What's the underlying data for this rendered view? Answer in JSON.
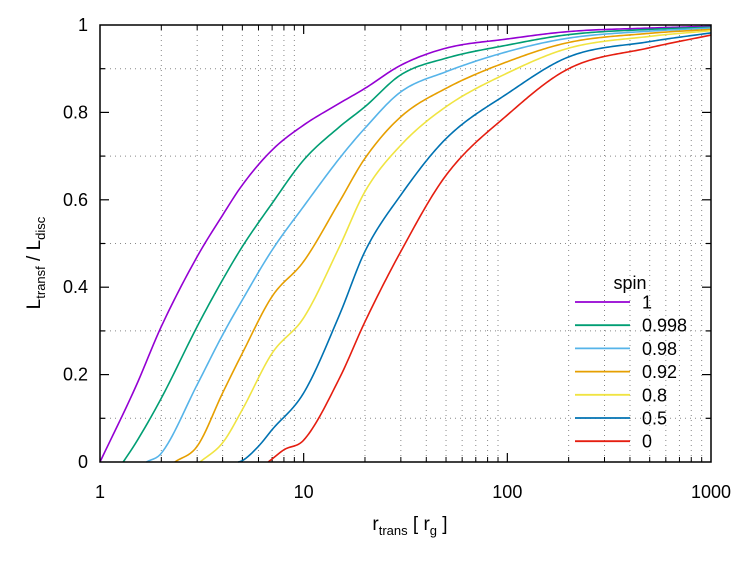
{
  "chart_data": {
    "type": "line",
    "xlabel": {
      "main": "r",
      "sub": "trans",
      "bracket_open": " [ r",
      "bracket_sub": "g",
      "bracket_close": " ]"
    },
    "ylabel": {
      "num": "L",
      "num_sub": "transf",
      "sep": " / L",
      "den_sub": "disc"
    },
    "x_scale": "log",
    "xlim": [
      1,
      1000
    ],
    "ylim": [
      0,
      1
    ],
    "xticks": [
      "1",
      "10",
      "100",
      "1000"
    ],
    "yticks": [
      "0",
      "0.2",
      "0.4",
      "0.6",
      "0.8",
      "1"
    ],
    "grid": "minor dotted",
    "legend_title": "spin",
    "legend_position": "bottom-right",
    "series": [
      {
        "name": "1",
        "color": "#9400d3",
        "x": [
          1,
          1.5,
          2,
          3,
          4,
          5,
          7,
          10,
          15,
          20,
          30,
          50,
          100,
          200,
          500,
          1000
        ],
        "y": [
          0,
          0.173,
          0.31,
          0.47,
          0.565,
          0.634,
          0.714,
          0.771,
          0.821,
          0.855,
          0.908,
          0.947,
          0.968,
          0.985,
          0.993,
          0.997
        ]
      },
      {
        "name": "0.998",
        "color": "#009e73",
        "x": [
          1.3,
          1.5,
          2,
          3,
          4,
          5,
          7,
          10,
          15,
          20,
          30,
          50,
          100,
          200,
          500,
          1000
        ],
        "y": [
          0,
          0.044,
          0.146,
          0.31,
          0.417,
          0.493,
          0.592,
          0.691,
          0.767,
          0.813,
          0.886,
          0.924,
          0.954,
          0.978,
          0.99,
          0.995
        ]
      },
      {
        "name": "0.98",
        "color": "#56b4e9",
        "x": [
          1.69,
          2,
          3,
          4,
          5,
          7,
          10,
          15,
          20,
          30,
          50,
          100,
          200,
          500,
          1000
        ],
        "y": [
          0,
          0.02,
          0.177,
          0.291,
          0.371,
          0.485,
          0.585,
          0.695,
          0.764,
          0.847,
          0.893,
          0.939,
          0.97,
          0.986,
          0.993
        ]
      },
      {
        "name": "0.92",
        "color": "#e69f00",
        "x": [
          2.33,
          3,
          4,
          5,
          7,
          10,
          15,
          20,
          30,
          50,
          100,
          200,
          500,
          1000
        ],
        "y": [
          0,
          0.036,
          0.158,
          0.249,
          0.379,
          0.459,
          0.596,
          0.695,
          0.79,
          0.855,
          0.916,
          0.96,
          0.981,
          0.99
        ]
      },
      {
        "name": "0.8",
        "color": "#f0e442",
        "x": [
          3.1,
          4,
          5,
          7,
          10,
          15,
          20,
          30,
          50,
          100,
          200,
          500,
          1000
        ],
        "y": [
          0,
          0.044,
          0.12,
          0.249,
          0.33,
          0.493,
          0.619,
          0.725,
          0.813,
          0.89,
          0.947,
          0.974,
          0.987
        ]
      },
      {
        "name": "0.5",
        "color": "#0072b2",
        "x": [
          4.77,
          5,
          6,
          7,
          10,
          15,
          20,
          30,
          50,
          100,
          200,
          500,
          1000
        ],
        "y": [
          0,
          0.003,
          0.036,
          0.074,
          0.158,
          0.337,
          0.482,
          0.611,
          0.74,
          0.843,
          0.927,
          0.962,
          0.982
        ]
      },
      {
        "name": "0",
        "color": "#e51e10",
        "x": [
          6.7,
          7,
          8,
          10,
          15,
          20,
          30,
          50,
          100,
          200,
          500,
          1000
        ],
        "y": [
          0,
          0.007,
          0.028,
          0.05,
          0.192,
          0.321,
          0.482,
          0.656,
          0.794,
          0.9,
          0.948,
          0.977
        ]
      }
    ]
  }
}
